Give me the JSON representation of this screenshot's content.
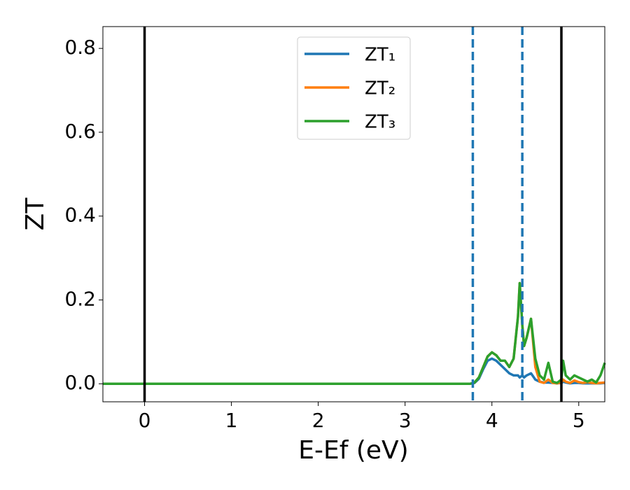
{
  "chart_data": {
    "type": "line",
    "xlabel": "E-Ef (eV)",
    "ylabel": "ZT",
    "x": [
      -0.48,
      3.7,
      3.75,
      3.8,
      3.85,
      3.9,
      3.95,
      4.0,
      4.05,
      4.1,
      4.15,
      4.2,
      4.25,
      4.3,
      4.32,
      4.35,
      4.37,
      4.4,
      4.45,
      4.5,
      4.55,
      4.6,
      4.65,
      4.7,
      4.75,
      4.8,
      4.82,
      4.85,
      4.9,
      4.95,
      5.0,
      5.05,
      5.1,
      5.15,
      5.2,
      5.25,
      5.3
    ],
    "series": [
      {
        "name": "ZT₁",
        "color": "#1f77b4",
        "values": [
          0,
          0,
          0,
          0.002,
          0.012,
          0.035,
          0.055,
          0.06,
          0.055,
          0.045,
          0.035,
          0.025,
          0.02,
          0.02,
          0.015,
          0.02,
          0.015,
          0.02,
          0.025,
          0.01,
          0.005,
          0.003,
          0.003,
          0.002,
          0.001,
          0.002,
          0.005,
          0.003,
          0.001,
          0.002,
          0.002,
          0.001,
          0.001,
          0.001,
          0.001,
          0.001,
          0.002
        ]
      },
      {
        "name": "ZT₂",
        "color": "#ff7f0e",
        "values": [
          0,
          0,
          0,
          0.003,
          0.015,
          0.04,
          0.065,
          0.075,
          0.068,
          0.055,
          0.055,
          0.04,
          0.06,
          0.16,
          0.24,
          0.14,
          0.09,
          0.11,
          0.155,
          0.04,
          0.005,
          0.002,
          0.01,
          0.002,
          0.001,
          0.003,
          0.01,
          0.005,
          0.002,
          0.008,
          0.004,
          0.002,
          0.004,
          0.002,
          0.001,
          0.002,
          0.003
        ]
      },
      {
        "name": "ZT₃",
        "color": "#2ca02c",
        "values": [
          0,
          0,
          0,
          0.003,
          0.015,
          0.04,
          0.065,
          0.075,
          0.068,
          0.055,
          0.055,
          0.04,
          0.06,
          0.16,
          0.24,
          0.14,
          0.09,
          0.11,
          0.155,
          0.06,
          0.02,
          0.01,
          0.05,
          0.005,
          0.002,
          0.01,
          0.055,
          0.02,
          0.01,
          0.02,
          0.015,
          0.01,
          0.005,
          0.01,
          0.003,
          0.02,
          0.05
        ]
      }
    ],
    "vlines": [
      {
        "x": 0,
        "color": "#000000",
        "dashed": false
      },
      {
        "x": 3.78,
        "color": "#1f77b4",
        "dashed": true
      },
      {
        "x": 4.35,
        "color": "#1f77b4",
        "dashed": true
      },
      {
        "x": 4.8,
        "color": "#000000",
        "dashed": false
      }
    ],
    "xlim": [
      -0.48,
      5.3
    ],
    "ylim": [
      -0.043,
      0.852
    ],
    "xticks": [
      0,
      1,
      2,
      3,
      4,
      5
    ],
    "yticks": [
      {
        "value": 0,
        "label": "0.0"
      },
      0.2,
      0.4,
      0.6,
      0.8
    ],
    "legend": "upper center"
  }
}
